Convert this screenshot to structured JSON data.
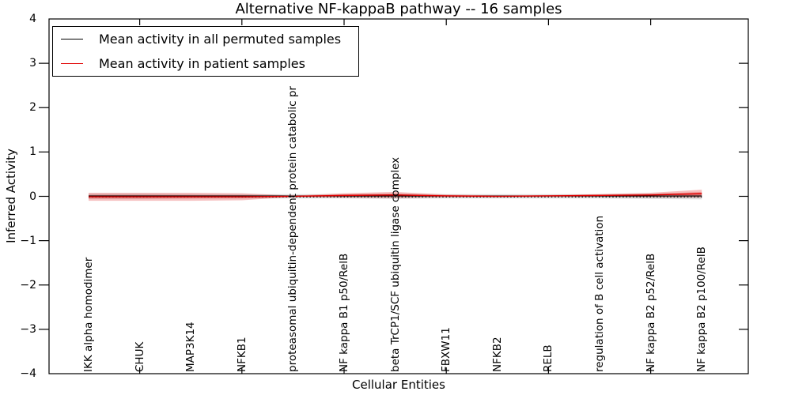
{
  "title": "Alternative NF-kappaB pathway -- 16 samples",
  "legend": {
    "items": [
      {
        "label": "Mean activity in all permuted samples",
        "color": "#000000"
      },
      {
        "label": "Mean activity in patient samples",
        "color": "#e00000"
      }
    ]
  },
  "axes": {
    "ylabel": "Inferred Activity",
    "xlabel": "Cellular Entities"
  },
  "chart_data": {
    "type": "line",
    "title": "Alternative NF-kappaB pathway -- 16 samples",
    "xlabel": "Cellular Entities",
    "ylabel": "Inferred Activity",
    "ylim": [
      -4,
      4
    ],
    "yticks": [
      "4",
      "3",
      "2",
      "1",
      "0",
      "−1",
      "−2",
      "−3",
      "−4"
    ],
    "grid": false,
    "legend_position": "upper left",
    "categories": [
      "IKK alpha homodimer",
      "CHUK",
      "MAP3K14",
      "NFKB1",
      "proteasomal ubiquitin-dependent protein catabolic pr",
      "NF kappa B1 p50/RelB",
      "beta TrCP1/SCF ubiquitin ligase complex",
      "FBXW11",
      "NFKB2",
      "RELB",
      "regulation of B cell activation",
      "NF kappa B2 p52/RelB",
      "NF kappa B2 p100/RelB"
    ],
    "xticks_at_indices": [
      1,
      3,
      5,
      7,
      9,
      11
    ],
    "series": [
      {
        "name": "Mean activity in all permuted samples",
        "color": "#000000",
        "line_style": "solid with dotted overlay",
        "values": [
          0,
          0,
          0,
          0,
          0,
          0,
          0,
          0,
          0,
          0,
          0,
          0,
          0
        ],
        "band_std": [
          0.06,
          0.06,
          0.05,
          0.05,
          0.05,
          0.05,
          0.06,
          0.05,
          0.05,
          0.05,
          0.05,
          0.06,
          0.07
        ],
        "band_color": "#000000"
      },
      {
        "name": "Mean activity in patient samples",
        "color": "#e00000",
        "line_style": "solid",
        "values": [
          -0.01,
          -0.01,
          -0.01,
          -0.01,
          0.0,
          0.02,
          0.03,
          0.01,
          0.0,
          0.01,
          0.02,
          0.03,
          0.06
        ],
        "band_std": [
          0.09,
          0.09,
          0.09,
          0.08,
          0.015,
          0.05,
          0.07,
          0.03,
          0.02,
          0.02,
          0.03,
          0.05,
          0.09
        ],
        "band_color": "#e03030"
      }
    ]
  }
}
